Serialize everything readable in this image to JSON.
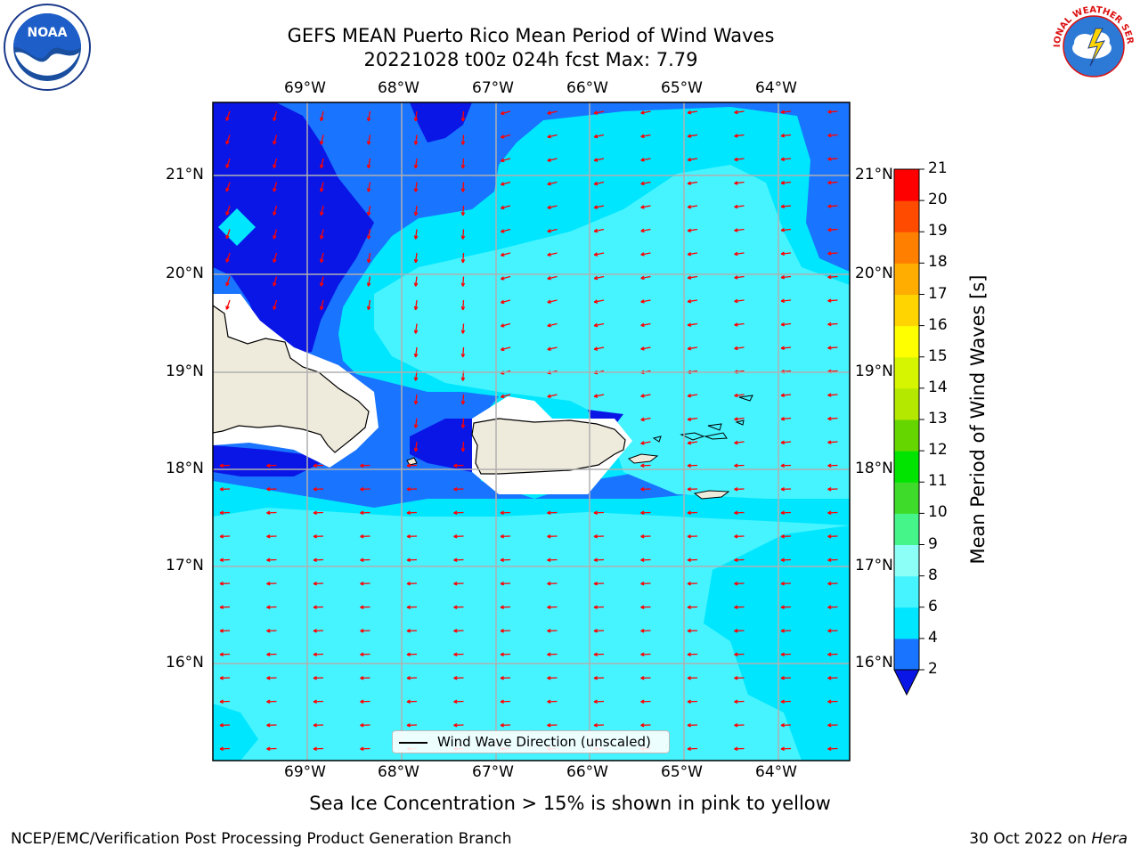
{
  "title": {
    "line1": "GEFS MEAN Puerto Rico Mean Period of Wind Waves",
    "line2": "20221028 t00z 024h fcst   Max: 7.79"
  },
  "map": {
    "lon_labels": [
      "69°W",
      "68°W",
      "67°W",
      "66°W",
      "65°W",
      "64°W"
    ],
    "lat_labels": [
      "21°N",
      "20°N",
      "19°N",
      "18°N",
      "17°N",
      "16°N"
    ],
    "legend_label": "Wind Wave Direction (unscaled)",
    "arrow_color": "#ff0000",
    "land_color": "#efebdc",
    "grid_color": "#b0b0b0"
  },
  "colorbar": {
    "label": "Mean Period of Wind Waves [s]",
    "ticks": [
      "2",
      "4",
      "6",
      "8",
      "9",
      "10",
      "11",
      "12",
      "13",
      "14",
      "15",
      "16",
      "17",
      "18",
      "19",
      "20",
      "21"
    ],
    "colors": [
      "#0a16e6",
      "#1974ff",
      "#00e6ff",
      "#45f4ff",
      "#8cfff7",
      "#45f58a",
      "#3fdb2a",
      "#00e400",
      "#66d600",
      "#b4e800",
      "#d6f500",
      "#ffff00",
      "#ffd400",
      "#ffad00",
      "#ff7f00",
      "#ff4b00",
      "#ff0000"
    ]
  },
  "note": "Sea Ice Concentration > 15% is shown in pink to yellow",
  "footer": {
    "left": "NCEP/EMC/Verification Post Processing Product Generation Branch",
    "date": "30 Oct 2022 on ",
    "host": "Hera"
  },
  "logos": {
    "noaa_text": "NOAA",
    "nws_text": "NATIONAL WEATHER SERVICE"
  }
}
